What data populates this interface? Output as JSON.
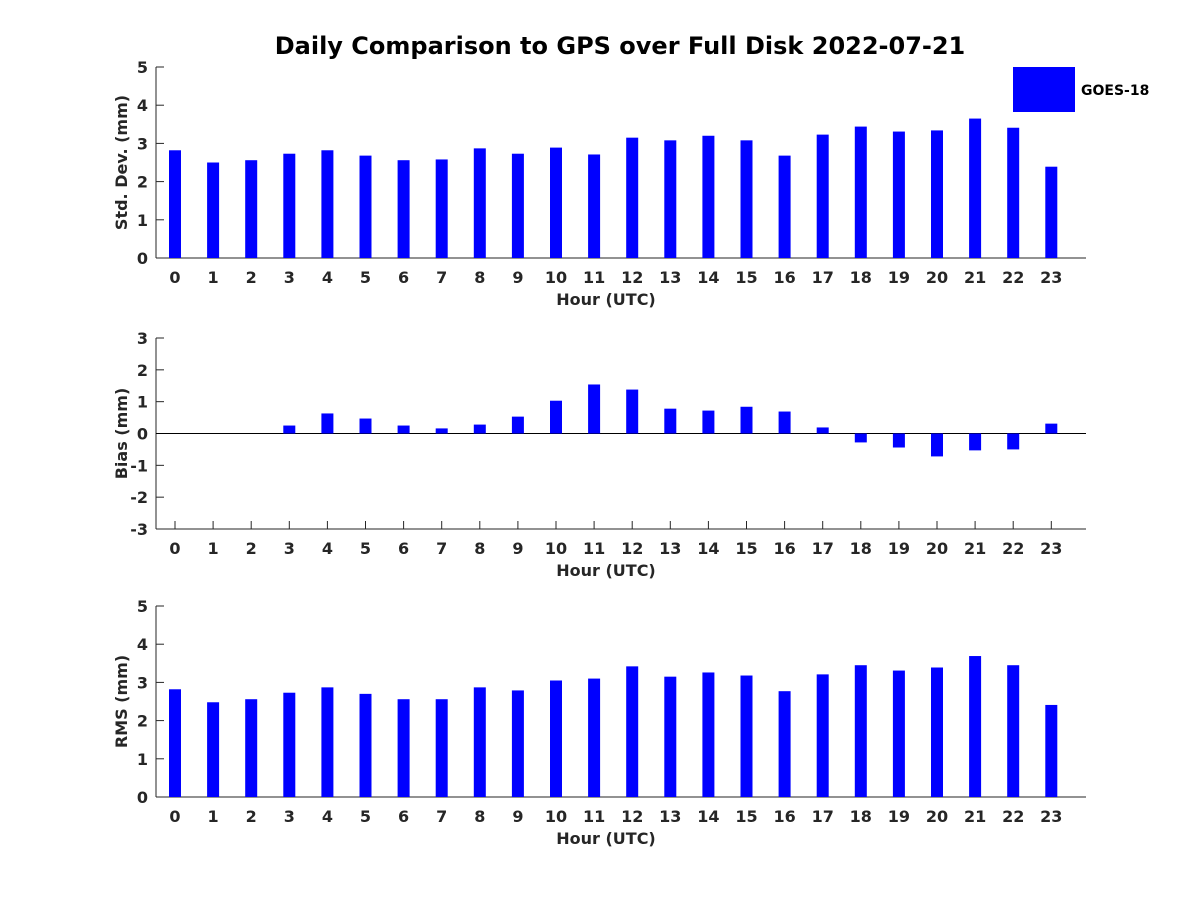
{
  "title": "Daily Comparison to GPS over Full Disk 2022-07-21",
  "legend": {
    "label": "GOES-18",
    "color": "#0000ff"
  },
  "chart_data": [
    {
      "type": "bar",
      "name": "std-dev",
      "xlabel": "Hour (UTC)",
      "ylabel": "Std. Dev. (mm)",
      "ylim": [
        0,
        5
      ],
      "yticks": [
        "0",
        "1",
        "2",
        "3",
        "4",
        "5"
      ],
      "categories": [
        "0",
        "1",
        "2",
        "3",
        "4",
        "5",
        "6",
        "7",
        "8",
        "9",
        "10",
        "11",
        "12",
        "13",
        "14",
        "15",
        "16",
        "17",
        "18",
        "19",
        "20",
        "21",
        "22",
        "23"
      ],
      "series": [
        {
          "name": "GOES-18",
          "values": [
            2.82,
            2.5,
            2.56,
            2.73,
            2.82,
            2.68,
            2.56,
            2.58,
            2.87,
            2.73,
            2.89,
            2.71,
            3.15,
            3.08,
            3.2,
            3.08,
            2.68,
            3.23,
            3.44,
            3.31,
            3.34,
            3.65,
            3.41,
            2.39
          ]
        }
      ]
    },
    {
      "type": "bar",
      "name": "bias",
      "xlabel": "Hour (UTC)",
      "ylabel": "Bias (mm)",
      "ylim": [
        -3,
        3
      ],
      "yticks": [
        "-3",
        "-2",
        "-1",
        "0",
        "1",
        "2",
        "3"
      ],
      "baseline": 0,
      "categories": [
        "0",
        "1",
        "2",
        "3",
        "4",
        "5",
        "6",
        "7",
        "8",
        "9",
        "10",
        "11",
        "12",
        "13",
        "14",
        "15",
        "16",
        "17",
        "18",
        "19",
        "20",
        "21",
        "22",
        "23"
      ],
      "series": [
        {
          "name": "GOES-18",
          "values": [
            0.0,
            0.0,
            0.0,
            0.25,
            0.63,
            0.47,
            0.25,
            0.16,
            0.28,
            0.53,
            1.03,
            1.54,
            1.38,
            0.78,
            0.72,
            0.84,
            0.69,
            0.19,
            -0.28,
            -0.44,
            -0.72,
            -0.53,
            -0.5,
            0.31
          ]
        }
      ]
    },
    {
      "type": "bar",
      "name": "rms",
      "xlabel": "Hour (UTC)",
      "ylabel": "RMS (mm)",
      "ylim": [
        0,
        5
      ],
      "yticks": [
        "0",
        "1",
        "2",
        "3",
        "4",
        "5"
      ],
      "categories": [
        "0",
        "1",
        "2",
        "3",
        "4",
        "5",
        "6",
        "7",
        "8",
        "9",
        "10",
        "11",
        "12",
        "13",
        "14",
        "15",
        "16",
        "17",
        "18",
        "19",
        "20",
        "21",
        "22",
        "23"
      ],
      "series": [
        {
          "name": "GOES-18",
          "values": [
            2.82,
            2.48,
            2.56,
            2.73,
            2.87,
            2.7,
            2.56,
            2.56,
            2.87,
            2.79,
            3.05,
            3.1,
            3.42,
            3.15,
            3.26,
            3.18,
            2.77,
            3.21,
            3.45,
            3.31,
            3.39,
            3.69,
            3.45,
            2.41
          ]
        }
      ]
    }
  ]
}
